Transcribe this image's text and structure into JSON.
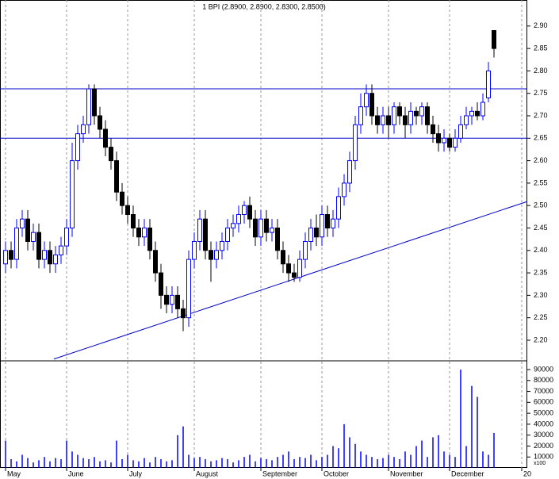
{
  "chart_data": {
    "type": "candlestick",
    "title": "1 BPI (2.8900, 2.8900, 2.8300, 2.8500)",
    "categories": [
      "May",
      null,
      null,
      null,
      null,
      null,
      null,
      null,
      null,
      null,
      null,
      "June",
      null,
      null,
      null,
      null,
      null,
      null,
      null,
      null,
      null,
      null,
      "July",
      null,
      null,
      null,
      null,
      null,
      null,
      null,
      null,
      null,
      null,
      null,
      "August",
      null,
      null,
      null,
      null,
      null,
      null,
      null,
      null,
      null,
      null,
      null,
      "September",
      null,
      null,
      null,
      null,
      null,
      null,
      null,
      null,
      null,
      null,
      "October",
      null,
      null,
      null,
      null,
      null,
      null,
      null,
      null,
      null,
      null,
      null,
      "November",
      null,
      null,
      null,
      null,
      null,
      null,
      null,
      null,
      null,
      null,
      "December",
      null,
      null,
      null,
      null,
      null,
      null,
      null,
      null,
      null,
      null,
      null,
      null,
      "20"
    ],
    "open": [
      2.37,
      2.4,
      2.38,
      2.45,
      2.47,
      2.42,
      2.44,
      2.38,
      2.4,
      2.37,
      2.39,
      2.41,
      2.45,
      2.6,
      2.66,
      2.68,
      2.76,
      2.7,
      2.67,
      2.63,
      2.6,
      2.53,
      2.5,
      2.48,
      2.45,
      2.43,
      2.45,
      2.4,
      2.35,
      2.3,
      2.28,
      2.3,
      2.27,
      2.25,
      2.38,
      2.42,
      2.47,
      2.4,
      2.38,
      2.4,
      2.42,
      2.45,
      2.46,
      2.48,
      2.5,
      2.47,
      2.43,
      2.47,
      2.44,
      2.45,
      2.4,
      2.37,
      2.35,
      2.34,
      2.38,
      2.42,
      2.45,
      2.43,
      2.48,
      2.45,
      2.47,
      2.52,
      2.55,
      2.6,
      2.68,
      2.72,
      2.75,
      2.7,
      2.68,
      2.7,
      2.68,
      2.72,
      2.7,
      2.68,
      2.71,
      2.7,
      2.72,
      2.68,
      2.66,
      2.64,
      2.65,
      2.63,
      2.65,
      2.68,
      2.7,
      2.71,
      2.7,
      2.74,
      2.89,
      null,
      null,
      null,
      null,
      null
    ],
    "high": [
      2.42,
      2.42,
      2.47,
      2.49,
      2.49,
      2.46,
      2.46,
      2.42,
      2.42,
      2.41,
      2.43,
      2.47,
      2.64,
      2.68,
      2.7,
      2.77,
      2.77,
      2.72,
      2.69,
      2.65,
      2.62,
      2.55,
      2.52,
      2.5,
      2.47,
      2.47,
      2.47,
      2.42,
      2.37,
      2.32,
      2.32,
      2.32,
      2.29,
      2.4,
      2.44,
      2.49,
      2.49,
      2.42,
      2.42,
      2.44,
      2.47,
      2.48,
      2.5,
      2.51,
      2.52,
      2.49,
      2.49,
      2.49,
      2.47,
      2.47,
      2.42,
      2.39,
      2.37,
      2.4,
      2.44,
      2.47,
      2.48,
      2.5,
      2.5,
      2.49,
      2.54,
      2.57,
      2.62,
      2.7,
      2.75,
      2.77,
      2.77,
      2.72,
      2.72,
      2.72,
      2.73,
      2.73,
      2.72,
      2.73,
      2.72,
      2.73,
      2.73,
      2.7,
      2.68,
      2.67,
      2.66,
      2.67,
      2.7,
      2.72,
      2.72,
      2.73,
      2.75,
      2.82,
      2.89,
      null,
      null,
      null,
      null,
      null
    ],
    "low": [
      2.35,
      2.36,
      2.36,
      2.43,
      2.4,
      2.4,
      2.36,
      2.36,
      2.35,
      2.35,
      2.37,
      2.39,
      2.43,
      2.58,
      2.64,
      2.66,
      2.68,
      2.65,
      2.61,
      2.58,
      2.51,
      2.48,
      2.46,
      2.43,
      2.41,
      2.41,
      2.38,
      2.33,
      2.27,
      2.26,
      2.26,
      2.25,
      2.22,
      2.23,
      2.36,
      2.4,
      2.38,
      2.33,
      2.36,
      2.38,
      2.4,
      2.43,
      2.44,
      2.46,
      2.45,
      2.41,
      2.41,
      2.42,
      2.42,
      2.38,
      2.35,
      2.33,
      2.33,
      2.33,
      2.36,
      2.4,
      2.41,
      2.41,
      2.43,
      2.43,
      2.45,
      2.5,
      2.53,
      2.58,
      2.66,
      2.7,
      2.68,
      2.66,
      2.66,
      2.65,
      2.66,
      2.68,
      2.65,
      2.66,
      2.68,
      2.68,
      2.66,
      2.64,
      2.62,
      2.62,
      2.62,
      2.62,
      2.64,
      2.67,
      2.68,
      2.69,
      2.69,
      2.73,
      2.83,
      null,
      null,
      null,
      null,
      null
    ],
    "close": [
      2.4,
      2.38,
      2.45,
      2.47,
      2.42,
      2.44,
      2.38,
      2.4,
      2.37,
      2.39,
      2.41,
      2.45,
      2.6,
      2.66,
      2.68,
      2.76,
      2.7,
      2.67,
      2.63,
      2.6,
      2.53,
      2.5,
      2.48,
      2.45,
      2.43,
      2.45,
      2.4,
      2.35,
      2.3,
      2.28,
      2.3,
      2.27,
      2.25,
      2.38,
      2.42,
      2.47,
      2.4,
      2.38,
      2.4,
      2.42,
      2.45,
      2.46,
      2.48,
      2.5,
      2.47,
      2.43,
      2.47,
      2.44,
      2.45,
      2.4,
      2.37,
      2.35,
      2.34,
      2.38,
      2.42,
      2.45,
      2.43,
      2.48,
      2.45,
      2.47,
      2.52,
      2.55,
      2.6,
      2.68,
      2.72,
      2.75,
      2.7,
      2.68,
      2.7,
      2.68,
      2.72,
      2.7,
      2.68,
      2.71,
      2.7,
      2.72,
      2.68,
      2.66,
      2.64,
      2.65,
      2.63,
      2.65,
      2.68,
      2.7,
      2.71,
      2.7,
      2.73,
      2.8,
      2.85,
      null,
      null,
      null,
      null,
      null
    ],
    "volume": [
      25000,
      8000,
      6000,
      12000,
      9000,
      5000,
      7000,
      10000,
      6000,
      9000,
      8000,
      25000,
      15000,
      12000,
      9000,
      8000,
      10000,
      6000,
      7000,
      5000,
      25000,
      8000,
      12000,
      7000,
      6000,
      9000,
      5000,
      10000,
      8000,
      6000,
      7000,
      30000,
      38000,
      12000,
      9000,
      10000,
      8000,
      6000,
      7000,
      9000,
      8000,
      5000,
      7000,
      10000,
      12000,
      6000,
      9000,
      8000,
      7000,
      10000,
      12000,
      15000,
      8000,
      10000,
      9000,
      12000,
      7000,
      10000,
      12000,
      20000,
      18000,
      40000,
      28000,
      22000,
      15000,
      12000,
      10000,
      8000,
      9000,
      12000,
      10000,
      8000,
      15000,
      12000,
      20000,
      25000,
      10000,
      28000,
      30000,
      15000,
      12000,
      10000,
      90000,
      20000,
      75000,
      65000,
      15000,
      12000,
      32000,
      null,
      null,
      null,
      null,
      null
    ],
    "ylim": [
      2.154,
      2.958
    ],
    "yticks": [
      {
        "value": 2.2,
        "label": "2.20"
      },
      {
        "value": 2.25,
        "label": "2.25"
      },
      {
        "value": 2.3,
        "label": "2.30"
      },
      {
        "value": 2.35,
        "label": "2.35"
      },
      {
        "value": 2.4,
        "label": "2.40"
      },
      {
        "value": 2.45,
        "label": "2.45"
      },
      {
        "value": 2.5,
        "label": "2.50"
      },
      {
        "value": 2.55,
        "label": "2.55"
      },
      {
        "value": 2.6,
        "label": "2.60"
      },
      {
        "value": 2.65,
        "label": "2.65"
      },
      {
        "value": 2.7,
        "label": "2.70"
      },
      {
        "value": 2.75,
        "label": "2.75"
      },
      {
        "value": 2.8,
        "label": "2.80"
      },
      {
        "value": 2.85,
        "label": "2.85"
      },
      {
        "value": 2.9,
        "label": "2.90"
      }
    ],
    "volume_lim": [
      0,
      98000
    ],
    "volume_ticks": [
      10000,
      20000,
      30000,
      40000,
      50000,
      60000,
      70000,
      80000,
      90000
    ],
    "volume_unit_label": "x100",
    "horizontal_lines": [
      2.76,
      2.65
    ],
    "trendline": {
      "x": [
        8.7,
        94.0
      ],
      "values": [
        2.158,
        2.509
      ]
    },
    "grid": true,
    "up_color": "#0000ff",
    "down_color": "#000000",
    "line_color": "#0000cc",
    "volume_color": "#0000ff"
  }
}
